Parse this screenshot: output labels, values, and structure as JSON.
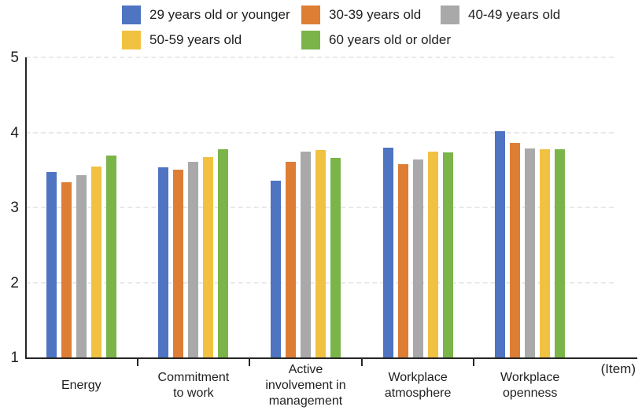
{
  "legend": {
    "items": [
      {
        "label": "29 years old or younger",
        "color": "#4E74C2"
      },
      {
        "label": "30-39 years old",
        "color": "#DE7E35"
      },
      {
        "label": "40-49 years old",
        "color": "#A9A9A9"
      },
      {
        "label": "50-59 years old",
        "color": "#F1C142"
      },
      {
        "label": "60 years old or older",
        "color": "#7BB449"
      }
    ]
  },
  "chart_data": {
    "type": "bar",
    "title": "",
    "categories": [
      "Energy",
      "Commitment\nto work",
      "Active\ninvolvement in\nmanagement",
      "Workplace\natmosphere",
      "Workplace\nopenness"
    ],
    "series": [
      {
        "name": "29 years old or younger",
        "color": "#4E74C2",
        "values": [
          3.47,
          3.53,
          3.36,
          3.8,
          4.02
        ]
      },
      {
        "name": "30-39 years old",
        "color": "#DE7E35",
        "values": [
          3.34,
          3.5,
          3.61,
          3.58,
          3.86
        ]
      },
      {
        "name": "40-49 years old",
        "color": "#A9A9A9",
        "values": [
          3.43,
          3.61,
          3.74,
          3.64,
          3.79
        ]
      },
      {
        "name": "50-59 years old",
        "color": "#F1C142",
        "values": [
          3.54,
          3.67,
          3.76,
          3.74,
          3.77
        ]
      },
      {
        "name": "60 years old or older",
        "color": "#7BB449",
        "values": [
          3.69,
          3.77,
          3.66,
          3.73,
          3.78
        ]
      }
    ],
    "ylim": [
      1,
      5
    ],
    "yticks": [
      1,
      2,
      3,
      4,
      5
    ],
    "xlabel": "",
    "ylabel": "",
    "x_unit_label": "(Item)",
    "grid": "horizontal-dashed",
    "legend_position": "top"
  }
}
